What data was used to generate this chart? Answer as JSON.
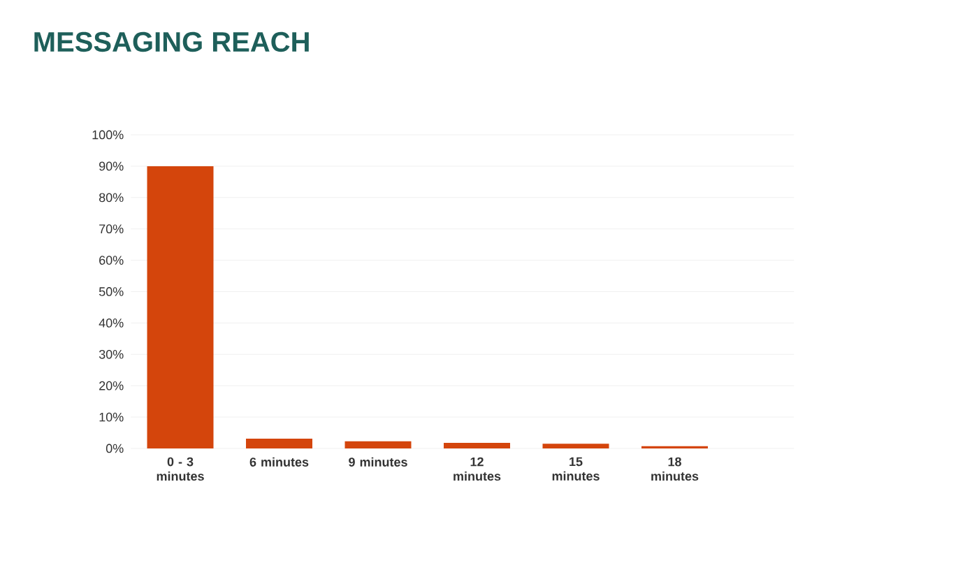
{
  "chart_data": {
    "type": "bar",
    "title": "MESSAGING REACH",
    "categories": [
      "0 - 3 minutes",
      "6 minutes",
      "9 minutes",
      "12 minutes",
      "15 minutes",
      "18 minutes"
    ],
    "values": [
      90,
      3.1,
      2.3,
      1.8,
      1.5,
      0.7
    ],
    "color": "#d4450c",
    "ylim": [
      0,
      100
    ],
    "yticks": [
      {
        "value": 0,
        "label": "0%"
      },
      {
        "value": 10,
        "label": "10%"
      },
      {
        "value": 20,
        "label": "20%"
      },
      {
        "value": 30,
        "label": "30%"
      },
      {
        "value": 40,
        "label": "40%"
      },
      {
        "value": 50,
        "label": "50%"
      },
      {
        "value": 60,
        "label": "60%"
      },
      {
        "value": 70,
        "label": "70%"
      },
      {
        "value": 80,
        "label": "80%"
      },
      {
        "value": 90,
        "label": "90%"
      },
      {
        "value": 100,
        "label": "100%"
      }
    ],
    "grid": "y"
  }
}
